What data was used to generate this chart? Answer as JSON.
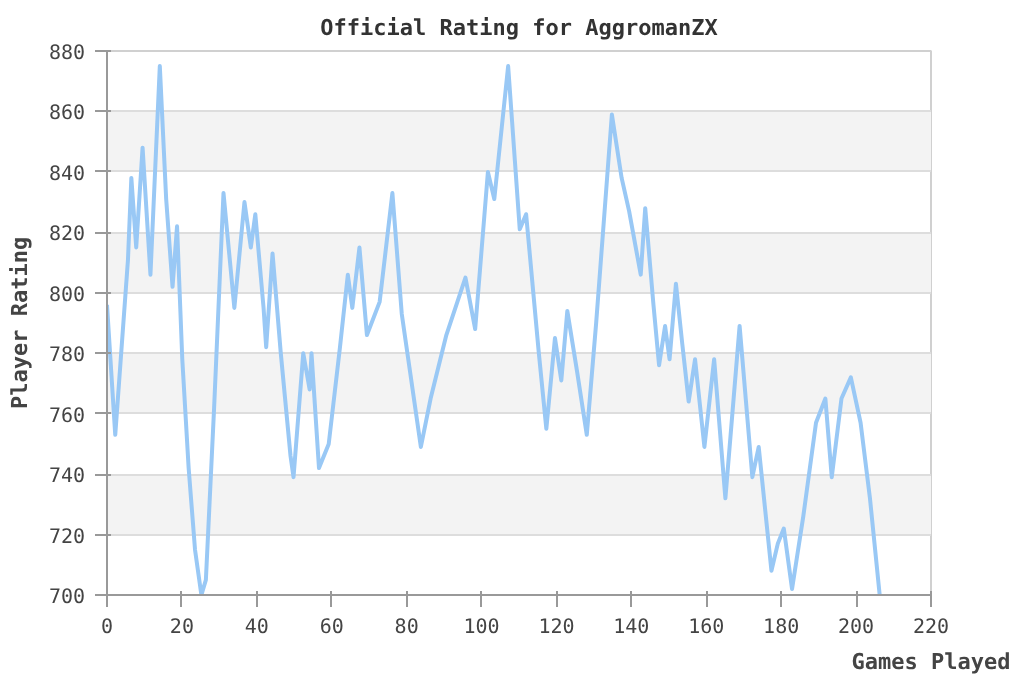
{
  "chart_data": {
    "type": "line",
    "title": "Official Rating for AggromanZX",
    "xlabel": "Games Played",
    "ylabel": "Player Rating",
    "x": [
      0,
      2.2,
      5.6,
      6.5,
      7.8,
      9.5,
      11.6,
      14.1,
      15.8,
      17.5,
      18.7,
      20.1,
      21.8,
      23.5,
      25.2,
      26.4,
      28.6,
      31.1,
      34.0,
      36.7,
      38.4,
      39.6,
      41.8,
      42.5,
      44.2,
      46.4,
      49.0,
      49.8,
      52.4,
      54.1,
      54.6,
      56.6,
      59.2,
      62.2,
      64.3,
      65.5,
      67.4,
      69.4,
      72.8,
      76.2,
      78.7,
      83.8,
      86.4,
      90.6,
      95.7,
      98.3,
      101.7,
      103.4,
      107.1,
      110.2,
      111.9,
      115.3,
      117.3,
      119.6,
      121.3,
      122.9,
      125.5,
      128.1,
      130.6,
      134.8,
      137.4,
      139.4,
      142.5,
      143.7,
      145.9,
      147.4,
      149.0,
      150.2,
      151.9,
      153.6,
      155.3,
      157.0,
      159.5,
      162.1,
      165.1,
      168.9,
      172.3,
      174.0,
      177.4,
      179.1,
      180.7,
      182.9,
      185.9,
      189.3,
      191.8,
      193.5,
      196.1,
      198.6,
      201.2,
      203.7,
      206.3
    ],
    "series": [
      {
        "color": "#99c8f5",
        "values": [
          796,
          753,
          811,
          838,
          815,
          848,
          806,
          875,
          831,
          802,
          822,
          778,
          742,
          715,
          700,
          705,
          762,
          833,
          795,
          830,
          815,
          826,
          795,
          782,
          813,
          780,
          746,
          739,
          780,
          768,
          780,
          742,
          750,
          782,
          806,
          795,
          815,
          786,
          797,
          833,
          793,
          749,
          765,
          786,
          805,
          788,
          840,
          831,
          875,
          821,
          826,
          780,
          755,
          785,
          771,
          794,
          774,
          753,
          790,
          859,
          838,
          827,
          806,
          828,
          796,
          776,
          789,
          778,
          803,
          783,
          764,
          778,
          749,
          778,
          732,
          789,
          739,
          749,
          708,
          717,
          722,
          702,
          726,
          757,
          765,
          739,
          765,
          772,
          757,
          732,
          700
        ]
      }
    ],
    "xlim": [
      0,
      220
    ],
    "ylim": [
      700,
      880
    ],
    "xticks": [
      0,
      20,
      40,
      60,
      80,
      100,
      120,
      140,
      160,
      180,
      200,
      220
    ],
    "yticks": [
      700,
      720,
      740,
      760,
      780,
      800,
      820,
      840,
      860,
      880
    ],
    "grid": "y"
  }
}
